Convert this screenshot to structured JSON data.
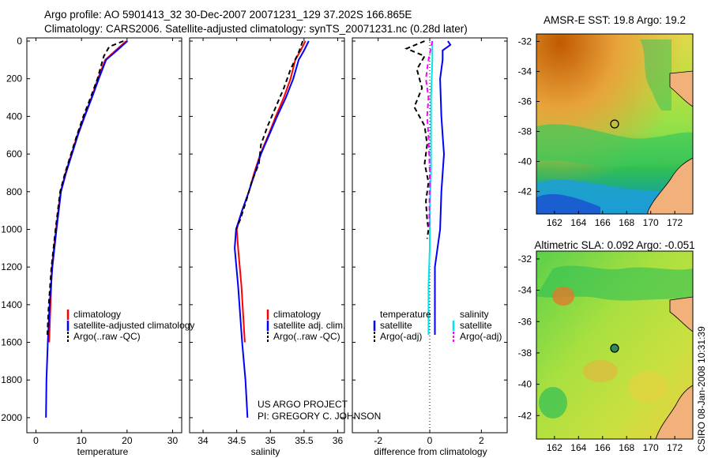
{
  "header": {
    "line1": "Argo profile: AO 5901413_32 30-Dec-2007 20071231_129 37.202S 166.865E",
    "line2": "Climatology: CARS2006. Satellite-adjusted climatology: synTS_20071231.nc (0.28d later)"
  },
  "credit": {
    "line1": "US ARGO PROJECT",
    "line2": "PI: GREGORY C. JOHNSON"
  },
  "footer_stamp": "CSIRO 08-Jan-2008 10:31:39",
  "chart_data": [
    {
      "id": "temperature",
      "type": "line",
      "xlabel": "temperature",
      "ylabel": "",
      "xlim": [
        -2,
        32
      ],
      "ylim": [
        2080,
        0
      ],
      "y_inverted": true,
      "xticks": [
        "0",
        "10",
        "20",
        "30"
      ],
      "xtick_values": [
        0,
        10,
        20,
        30
      ],
      "yticks": [
        "0",
        "200",
        "400",
        "600",
        "800",
        "1000",
        "1200",
        "1400",
        "1600",
        "1800",
        "2000"
      ],
      "ytick_values": [
        0,
        200,
        400,
        600,
        800,
        1000,
        1200,
        1400,
        1600,
        1800,
        2000
      ],
      "legend": [
        "climatology",
        "satellite-adjusted climatology",
        "Argo(..raw -QC)"
      ],
      "legend_position": "lower-right",
      "series": [
        {
          "name": "climatology",
          "color": "#ff0000",
          "dash": "solid",
          "x": [
            19.8,
            17.5,
            15.2,
            13.6,
            12.2,
            10.6,
            9.1,
            7.8,
            6.5,
            5.4,
            4.4,
            3.5,
            2.9
          ],
          "y": [
            0,
            50,
            100,
            200,
            300,
            400,
            500,
            600,
            700,
            800,
            1000,
            1200,
            1600
          ]
        },
        {
          "name": "satellite-adjusted climatology",
          "color": "#0000ff",
          "dash": "solid",
          "x": [
            20.1,
            17.8,
            15.4,
            13.8,
            12.3,
            10.7,
            9.2,
            7.9,
            6.6,
            5.5,
            4.5,
            3.6,
            3.0,
            2.6,
            2.3,
            2.2
          ],
          "y": [
            0,
            50,
            100,
            200,
            300,
            400,
            500,
            600,
            700,
            800,
            1000,
            1200,
            1400,
            1600,
            1800,
            2000
          ]
        },
        {
          "name": "Argo(..raw -QC)",
          "color": "#000000",
          "dash": "6,4",
          "x": [
            19.2,
            16.1,
            14.9,
            13.5,
            12.0,
            10.4,
            9.0,
            7.7,
            6.4,
            5.3,
            4.3,
            3.4,
            2.8,
            2.5
          ],
          "y": [
            0,
            30,
            80,
            200,
            300,
            400,
            500,
            600,
            700,
            800,
            1000,
            1200,
            1400,
            1560
          ]
        }
      ]
    },
    {
      "id": "salinity",
      "type": "line",
      "xlabel": "salinity",
      "ylabel": "",
      "xlim": [
        33.8,
        36.1
      ],
      "ylim": [
        2080,
        0
      ],
      "y_inverted": true,
      "xticks": [
        "34",
        "34.5",
        "35",
        "35.5",
        "36"
      ],
      "xtick_values": [
        34,
        34.5,
        35,
        35.5,
        36
      ],
      "legend": [
        "climatology",
        "satellite adj. clim.",
        "Argo(..raw -QC)"
      ],
      "legend_position": "lower-right",
      "series": [
        {
          "name": "climatology",
          "color": "#ff0000",
          "dash": "solid",
          "x": [
            35.52,
            35.45,
            35.37,
            35.3,
            35.2,
            35.08,
            34.97,
            34.85,
            34.76,
            34.68,
            34.58,
            34.5,
            34.52,
            34.57,
            34.62
          ],
          "y": [
            0,
            50,
            100,
            200,
            300,
            400,
            500,
            600,
            700,
            800,
            900,
            1000,
            1100,
            1300,
            1600
          ]
        },
        {
          "name": "satellite adj. clim.",
          "color": "#0000ff",
          "dash": "solid",
          "x": [
            35.57,
            35.5,
            35.42,
            35.34,
            35.23,
            35.1,
            34.98,
            34.86,
            34.77,
            34.68,
            34.58,
            34.49,
            34.47,
            34.52,
            34.58,
            34.63,
            34.66
          ],
          "y": [
            0,
            50,
            100,
            200,
            300,
            400,
            500,
            600,
            700,
            800,
            900,
            1000,
            1100,
            1300,
            1600,
            1800,
            2000
          ]
        },
        {
          "name": "Argo(..raw -QC)",
          "color": "#000000",
          "dash": "6,4",
          "x": [
            35.48,
            35.42,
            35.3,
            35.2,
            35.08,
            34.96,
            34.86,
            34.83,
            34.72,
            34.64,
            34.55,
            34.49
          ],
          "y": [
            0,
            60,
            150,
            250,
            350,
            450,
            550,
            650,
            750,
            850,
            950,
            1000
          ]
        }
      ]
    },
    {
      "id": "difference",
      "type": "line",
      "xlabel": "difference from climatology",
      "ylabel": "",
      "xlim": [
        -3,
        3
      ],
      "ylim": [
        2080,
        0
      ],
      "y_inverted": true,
      "xticks": [
        "-2",
        "0",
        "2"
      ],
      "xtick_values": [
        -2,
        0,
        2
      ],
      "zero_line": "dotted",
      "legend_groups": [
        {
          "title": "temperature",
          "entries": [
            "satellite",
            "Argo(-adj)"
          ]
        },
        {
          "title": "salinity",
          "entries": [
            "satellite",
            "Argo(-adj)"
          ]
        }
      ],
      "legend_position": "lower-right",
      "series": [
        {
          "name": "temperature satellite",
          "color": "#0000ff",
          "dash": "solid",
          "x": [
            0.7,
            0.8,
            0.5,
            0.5,
            0.4,
            0.45,
            0.5,
            0.55,
            0.45,
            0.4,
            0.3,
            0.2,
            0.2,
            0.2
          ],
          "y": [
            0,
            20,
            50,
            100,
            200,
            400,
            500,
            600,
            800,
            1000,
            1100,
            1200,
            1400,
            1560
          ]
        },
        {
          "name": "temperature Argo(-adj)",
          "color": "#000000",
          "dash": "6,4",
          "x": [
            -0.2,
            -0.9,
            -0.2,
            -0.5,
            -0.3,
            -0.6,
            -0.2,
            -0.1,
            -0.2,
            -0.05,
            -0.15,
            -0.1,
            -0.05,
            -0.1
          ],
          "y": [
            0,
            40,
            80,
            150,
            250,
            350,
            450,
            550,
            650,
            750,
            850,
            950,
            1000,
            1050
          ]
        },
        {
          "name": "salinity satellite",
          "color": "#00e5ee",
          "dash": "solid",
          "x": [
            0.1,
            0.1,
            0.05,
            0.05,
            0.05,
            0.0,
            0.0,
            0.0,
            -0.05,
            -0.05,
            -0.05
          ],
          "y": [
            0,
            100,
            300,
            500,
            700,
            900,
            1000,
            1100,
            1300,
            1500,
            1560
          ]
        },
        {
          "name": "salinity Argo(-adj)",
          "color": "#ff00ff",
          "dash": "6,4",
          "x": [
            0.1,
            -0.05,
            -0.15,
            -0.05,
            -0.1,
            -0.05,
            0.0,
            -0.02
          ],
          "y": [
            0,
            100,
            200,
            300,
            400,
            500,
            700,
            1000
          ]
        }
      ]
    },
    {
      "id": "sst_map",
      "type": "heatmap",
      "title": "AMSR-E SST: 19.8 Argo: 19.2",
      "xlim": [
        160.5,
        173.5
      ],
      "ylim": [
        -43.5,
        -31.5
      ],
      "xticks": [
        "162",
        "164",
        "166",
        "168",
        "170",
        "172"
      ],
      "xtick_values": [
        162,
        164,
        166,
        168,
        170,
        172
      ],
      "yticks": [
        "-32",
        "-34",
        "-36",
        "-38",
        "-40",
        "-42"
      ],
      "ytick_values": [
        -32,
        -34,
        -36,
        -38,
        -40,
        -42
      ],
      "marker": {
        "lon": 166.865,
        "lat": -37.202
      }
    },
    {
      "id": "sla_map",
      "type": "heatmap",
      "title": "Altimetric SLA: 0.092 Argo: -0.051",
      "xlim": [
        160.5,
        173.5
      ],
      "ylim": [
        -43.5,
        -31.5
      ],
      "xticks": [
        "162",
        "164",
        "166",
        "168",
        "170",
        "172"
      ],
      "xtick_values": [
        162,
        164,
        166,
        168,
        170,
        172
      ],
      "yticks": [
        "-32",
        "-34",
        "-36",
        "-38",
        "-40",
        "-42"
      ],
      "ytick_values": [
        -32,
        -34,
        -36,
        -38,
        -40,
        -42
      ],
      "marker": {
        "lon": 166.865,
        "lat": -37.202
      }
    }
  ]
}
